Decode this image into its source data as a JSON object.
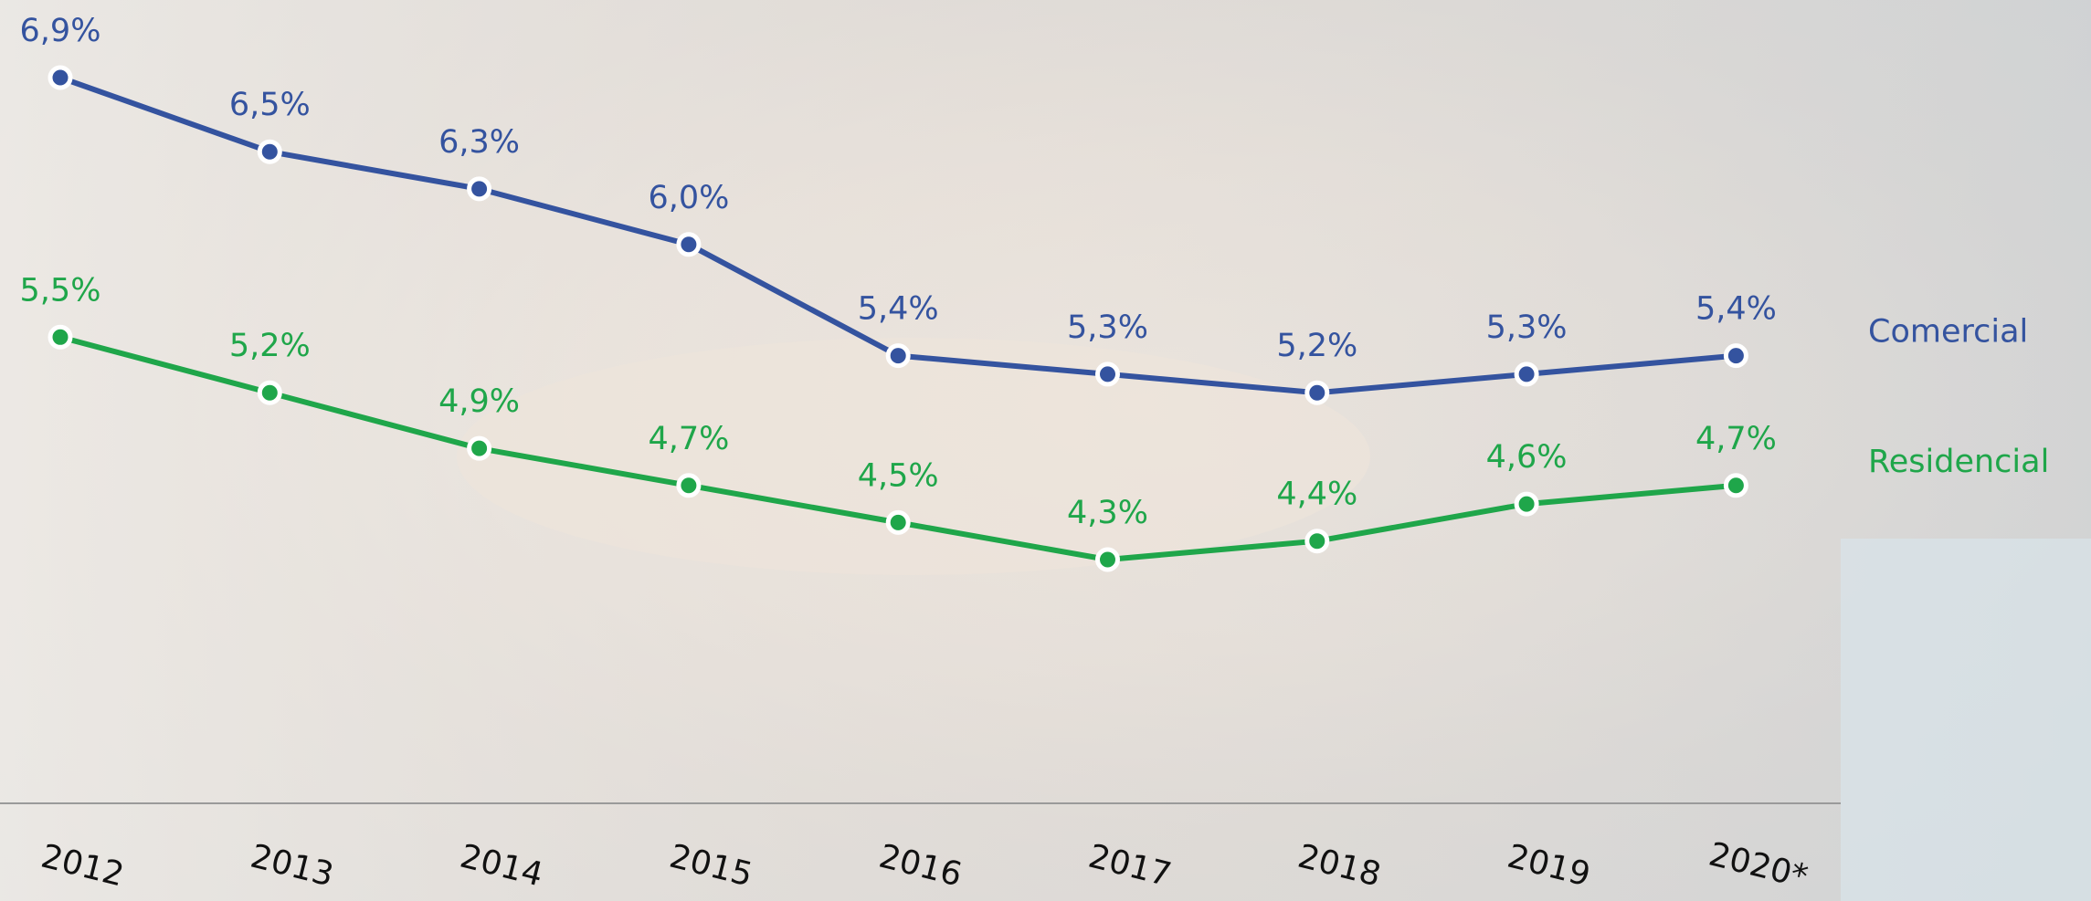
{
  "chart_data": {
    "type": "line",
    "categories": [
      "2012",
      "2013",
      "2014",
      "2015",
      "2016",
      "2017",
      "2018",
      "2019",
      "2020*"
    ],
    "series": [
      {
        "name": "Comercial",
        "color": "#34539f",
        "values": [
          6.9,
          6.5,
          6.3,
          6.0,
          5.4,
          5.3,
          5.2,
          5.3,
          5.4
        ],
        "value_labels": [
          "6,9%",
          "6,5%",
          "6,3%",
          "6,0%",
          "5,4%",
          "5,3%",
          "5,2%",
          "5,3%",
          "5,4%"
        ]
      },
      {
        "name": "Residencial",
        "color": "#1fa64a",
        "values": [
          5.5,
          5.2,
          4.9,
          4.7,
          4.5,
          4.3,
          4.4,
          4.6,
          4.7
        ],
        "value_labels": [
          "5,5%",
          "5,2%",
          "4,9%",
          "4,7%",
          "4,5%",
          "4,3%",
          "4,4%",
          "4,6%",
          "4,7%"
        ]
      }
    ]
  }
}
